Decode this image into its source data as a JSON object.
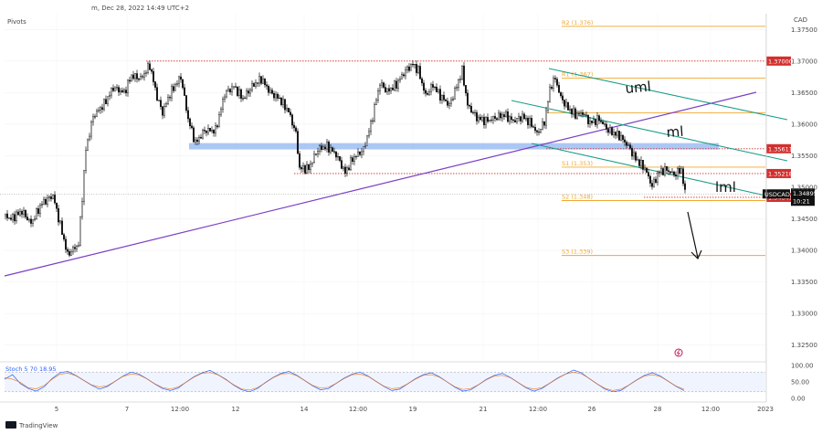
{
  "header": {
    "title": "m, Dec 28, 2022 14:49 UTC+2",
    "indicator": "Pivots",
    "currency": "CAD"
  },
  "watermark": "TradingView",
  "colors": {
    "bullish": "#1a1a1a",
    "bearish": "#1a1a1a",
    "pivot": "#f0a830",
    "channel": "#1a9e8a",
    "trendline": "#7b3fc4",
    "level": "#d32f2f",
    "zone": "#8fb4f0",
    "price_tag": "#111111",
    "stoch_k": "#2962ff",
    "stoch_d": "#ef6c00"
  },
  "chart_data": {
    "type": "line",
    "title": "",
    "ylim": [
      1.3225,
      1.3775
    ],
    "y_ticks": [
      "1.37500",
      "1.37000",
      "1.36500",
      "1.36000",
      "1.35500",
      "1.35000",
      "1.34500",
      "1.34000",
      "1.33500",
      "1.33000",
      "1.32500"
    ],
    "x_ticks": [
      "5",
      "7",
      "12:00",
      "12",
      "14",
      "12:00",
      "19",
      "21",
      "12:00",
      "26",
      "28",
      "12:00",
      "2023"
    ],
    "price_series": {
      "name": "",
      "anchors": [
        [
          0,
          1.3455
        ],
        [
          6,
          1.345
        ],
        [
          18,
          1.3462
        ],
        [
          28,
          1.3443
        ],
        [
          40,
          1.3475
        ],
        [
          52,
          1.3487
        ],
        [
          60,
          1.344
        ],
        [
          68,
          1.3393
        ],
        [
          80,
          1.341
        ],
        [
          88,
          1.356
        ],
        [
          96,
          1.3612
        ],
        [
          108,
          1.3632
        ],
        [
          118,
          1.3658
        ],
        [
          130,
          1.365
        ],
        [
          138,
          1.3677
        ],
        [
          148,
          1.3672
        ],
        [
          158,
          1.3693
        ],
        [
          166,
          1.3643
        ],
        [
          172,
          1.3618
        ],
        [
          180,
          1.3648
        ],
        [
          192,
          1.3675
        ],
        [
          200,
          1.3608
        ],
        [
          208,
          1.357
        ],
        [
          218,
          1.359
        ],
        [
          230,
          1.359
        ],
        [
          240,
          1.3648
        ],
        [
          250,
          1.366
        ],
        [
          260,
          1.364
        ],
        [
          270,
          1.366
        ],
        [
          280,
          1.3672
        ],
        [
          290,
          1.365
        ],
        [
          300,
          1.364
        ],
        [
          310,
          1.362
        ],
        [
          318,
          1.3585
        ],
        [
          322,
          1.353
        ],
        [
          332,
          1.353
        ],
        [
          342,
          1.356
        ],
        [
          352,
          1.3565
        ],
        [
          362,
          1.3552
        ],
        [
          372,
          1.3523
        ],
        [
          380,
          1.3545
        ],
        [
          392,
          1.356
        ],
        [
          400,
          1.36
        ],
        [
          410,
          1.3665
        ],
        [
          418,
          1.3652
        ],
        [
          428,
          1.3663
        ],
        [
          438,
          1.3685
        ],
        [
          446,
          1.3695
        ],
        [
          452,
          1.3685
        ],
        [
          460,
          1.3645
        ],
        [
          468,
          1.3662
        ],
        [
          476,
          1.3645
        ],
        [
          486,
          1.363
        ],
        [
          494,
          1.366
        ],
        [
          500,
          1.3685
        ],
        [
          506,
          1.363
        ],
        [
          516,
          1.361
        ],
        [
          526,
          1.3605
        ],
        [
          536,
          1.361
        ],
        [
          546,
          1.3615
        ],
        [
          556,
          1.3605
        ],
        [
          566,
          1.3612
        ],
        [
          576,
          1.36
        ],
        [
          582,
          1.3585
        ],
        [
          590,
          1.3603
        ],
        [
          597,
          1.3662
        ],
        [
          602,
          1.3672
        ],
        [
          608,
          1.3642
        ],
        [
          616,
          1.3625
        ],
        [
          624,
          1.3615
        ],
        [
          632,
          1.3618
        ],
        [
          640,
          1.3602
        ],
        [
          650,
          1.3608
        ],
        [
          660,
          1.359
        ],
        [
          672,
          1.3582
        ],
        [
          682,
          1.3565
        ],
        [
          690,
          1.3545
        ],
        [
          700,
          1.353
        ],
        [
          708,
          1.3502
        ],
        [
          716,
          1.3525
        ],
        [
          724,
          1.3528
        ],
        [
          732,
          1.352
        ],
        [
          740,
          1.3528
        ],
        [
          744,
          1.349
        ]
      ]
    },
    "current_price": {
      "symbol": "USDCAD",
      "value": "1.34895",
      "countdown": "10:21"
    },
    "levels": [
      {
        "name": "R2",
        "label": "R2 (1.376)",
        "value": 1.3755,
        "style": "pivot"
      },
      {
        "name": "R1",
        "label": "R1 (1.367)",
        "value": 1.3673,
        "style": "pivot"
      },
      {
        "name": "P",
        "label": "",
        "value": 1.3618,
        "style": "pivot"
      },
      {
        "name": "S1",
        "label": "S1 (1.353)",
        "value": 1.3532,
        "style": "pivot"
      },
      {
        "name": "S2",
        "label": "S2 (1.348)",
        "value": 1.3479,
        "style": "pivot"
      },
      {
        "name": "S3",
        "label": "S3 (1.339)",
        "value": 1.3392,
        "style": "pivot"
      }
    ],
    "horizontal_lines": [
      {
        "value": 1.37,
        "label": "1.37000"
      },
      {
        "value": 1.35611,
        "label": "1.35611"
      },
      {
        "value": 1.35218,
        "label": "1.35218"
      },
      {
        "value": 1.34841,
        "label": "1.34841"
      }
    ],
    "channel_labels": [
      "uml",
      "ml",
      "lml"
    ],
    "stochastic": {
      "label": "Stoch 5 70 18.95",
      "ylim": [
        0,
        100
      ],
      "y_ticks": [
        "100.00",
        "50.00",
        "0.00"
      ],
      "bands": [
        20,
        80
      ],
      "k_values": [
        58,
        72,
        45,
        30,
        22,
        35,
        60,
        78,
        82,
        70,
        55,
        40,
        28,
        36,
        52,
        68,
        80,
        74,
        60,
        44,
        30,
        24,
        32,
        50,
        66,
        78,
        85,
        72,
        58,
        40,
        26,
        20,
        30,
        48,
        64,
        76,
        82,
        70,
        54,
        38,
        26,
        30,
        46,
        62,
        74,
        80,
        68,
        52,
        36,
        24,
        28,
        44,
        60,
        72,
        78,
        66,
        50,
        34,
        22,
        26,
        42,
        58,
        70,
        76,
        64,
        48,
        32,
        22,
        30,
        46,
        62,
        74,
        86,
        78,
        60,
        44,
        28,
        20,
        24,
        40,
        56,
        70,
        78,
        68,
        52,
        36,
        24
      ]
    }
  }
}
